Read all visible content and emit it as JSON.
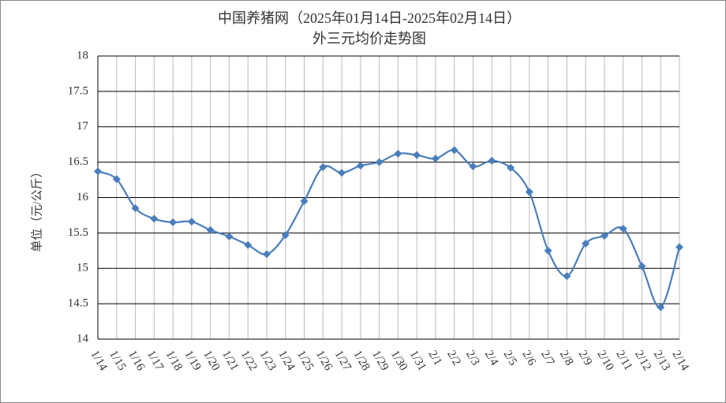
{
  "chart_data": {
    "type": "line",
    "title": "中国养猪网（2025年01月14日-2025年02月14日）",
    "subtitle": "外三元均价走势图",
    "y_label": "单位（元/公斤）",
    "categories": [
      "1/14",
      "1/15",
      "1/16",
      "1/17",
      "1/18",
      "1/19",
      "1/20",
      "1/21",
      "1/22",
      "1/23",
      "1/24",
      "1/25",
      "1/26",
      "1/27",
      "1/28",
      "1/29",
      "1/30",
      "1/31",
      "2/1",
      "2/2",
      "2/3",
      "2/4",
      "2/5",
      "2/6",
      "2/7",
      "2/8",
      "2/9",
      "2/10",
      "2/11",
      "2/12",
      "2/13",
      "2/14"
    ],
    "series": [
      {
        "name": "外三元",
        "color": "#4a7ebb",
        "values": [
          16.37,
          16.26,
          15.85,
          15.7,
          15.65,
          15.66,
          15.54,
          15.45,
          15.33,
          15.2,
          15.47,
          15.95,
          16.43,
          16.35,
          16.45,
          16.5,
          16.62,
          16.6,
          16.55,
          16.67,
          16.44,
          16.52,
          16.42,
          16.08,
          15.25,
          14.89,
          15.35,
          15.46,
          15.56,
          15.03,
          14.45,
          15.3
        ]
      }
    ],
    "ylim": [
      14,
      18
    ],
    "yticks": [
      14,
      14.5,
      15,
      15.5,
      16,
      16.5,
      17,
      17.5,
      18
    ],
    "grid": true,
    "smooth": true
  }
}
